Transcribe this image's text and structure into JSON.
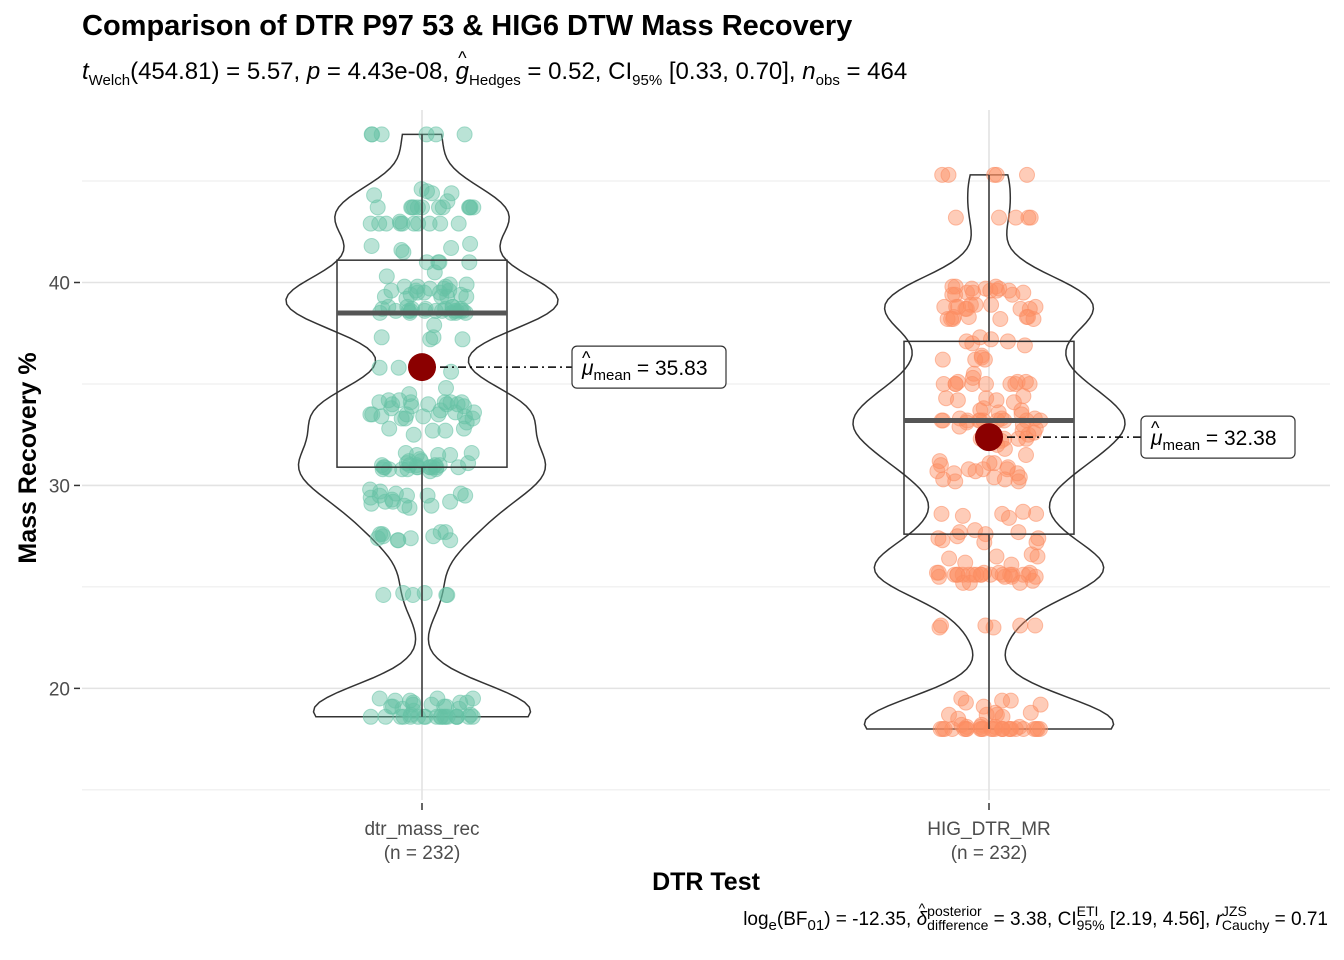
{
  "title": "Comparison of DTR P97 53 & HIG6 DTW Mass Recovery",
  "subtitle": {
    "t_label": "t",
    "t_sub": "Welch",
    "t_value": "(454.81) = 5.57, ",
    "p_label": "p",
    "p_value": " = 4.43e-08, ",
    "g_label": "g",
    "g_sub": "Hedges",
    "g_value": " = 0.52, CI",
    "ci_sub": "95%",
    "ci_value": " [0.33, 0.70], ",
    "n_label": "n",
    "n_sub": "obs",
    "n_value": " = 464"
  },
  "caption": {
    "log_label": "log",
    "log_sub": "e",
    "bf_label": "(BF",
    "bf_sub": "01",
    "bf_value": ") = -12.35, ",
    "delta_sup": "posterior",
    "delta_sub": "difference",
    "delta_value": " = 3.38, CI",
    "ci_sup": "ETI",
    "ci_sub": "95%",
    "ci_value": " [2.19, 4.56], ",
    "r_label": "r",
    "r_sup": "JZS",
    "r_sub": "Cauchy",
    "r_value": " = 0.71"
  },
  "chart_data": {
    "type": "violin-box-scatter",
    "xlabel": "DTR Test",
    "ylabel": "Mass Recovery %",
    "ylim": [
      14.5,
      48.5
    ],
    "yticks": [
      20,
      30,
      40
    ],
    "grid": true,
    "groups": [
      {
        "name": "dtr_mass_rec",
        "n_label": "(n = 232)",
        "color": "#66c2a5",
        "mean": 35.83,
        "mean_label": "35.83",
        "box": {
          "min": 18.6,
          "q1": 30.9,
          "median": 38.5,
          "q3": 41.1,
          "max": 47.3
        },
        "values": [
          47.3,
          47.3,
          47.3,
          47.3,
          47.3,
          47.3,
          44.6,
          44.5,
          44.4,
          44.4,
          44.3,
          44.0,
          43.7,
          43.7,
          43.7,
          43.7,
          43.7,
          43.7,
          43.7,
          43.7,
          43.7,
          43.7,
          43.7,
          43.7,
          43.0,
          42.9,
          42.9,
          42.9,
          42.9,
          42.9,
          42.9,
          42.9,
          42.9,
          42.9,
          42.9,
          41.9,
          41.8,
          41.7,
          41.6,
          41.5,
          41.0,
          41.0,
          41.0,
          41.0,
          40.5,
          40.3,
          39.9,
          39.9,
          39.8,
          39.8,
          39.8,
          39.7,
          39.7,
          39.6,
          39.6,
          39.6,
          39.5,
          39.5,
          39.5,
          39.4,
          39.4,
          39.3,
          39.3,
          39.3,
          39.3,
          39.2,
          38.8,
          38.8,
          38.8,
          38.8,
          38.7,
          38.7,
          38.7,
          38.7,
          38.7,
          38.6,
          38.6,
          38.6,
          38.6,
          38.6,
          38.6,
          38.6,
          38.6,
          38.6,
          38.6,
          38.5,
          38.5,
          38.5,
          38.5,
          38.5,
          37.9,
          37.3,
          37.3,
          37.2,
          37.2,
          35.8,
          35.8,
          35.6,
          34.8,
          34.5,
          34.2,
          34.2,
          34.1,
          34.1,
          34.1,
          34.1,
          34.1,
          34.0,
          34.0,
          34.0,
          34.0,
          33.9,
          33.9,
          33.8,
          33.7,
          33.6,
          33.6,
          33.5,
          33.5,
          33.5,
          33.5,
          33.4,
          33.4,
          33.4,
          33.3,
          33.3,
          33.3,
          33.1,
          32.8,
          32.8,
          32.7,
          32.7,
          32.5,
          31.6,
          31.6,
          31.5,
          31.5,
          31.5,
          31.3,
          31.2,
          31.2,
          31.1,
          31.1,
          31.0,
          31.0,
          31.0,
          31.0,
          31.0,
          30.9,
          30.9,
          30.9,
          30.9,
          30.9,
          30.9,
          30.9,
          30.9,
          30.9,
          30.8,
          30.8,
          30.8,
          30.8,
          30.8,
          30.7,
          29.8,
          29.7,
          29.6,
          29.6,
          29.5,
          29.5,
          29.5,
          29.5,
          29.4,
          29.3,
          29.2,
          29.2,
          29.2,
          29.1,
          29.0,
          29.0,
          28.9,
          27.7,
          27.7,
          27.6,
          27.6,
          27.5,
          27.5,
          27.4,
          27.4,
          27.3,
          27.3,
          27.3,
          24.7,
          24.7,
          24.6,
          24.6,
          24.6,
          24.6,
          19.5,
          19.5,
          19.5,
          19.4,
          19.4,
          19.3,
          19.3,
          19.3,
          19.2,
          19.2,
          19.1,
          19.1,
          19.1,
          19.1,
          19.0,
          19.0,
          18.9,
          18.7,
          18.7,
          18.6,
          18.6,
          18.6,
          18.6,
          18.6,
          18.6,
          18.6,
          18.6,
          18.6,
          18.6,
          18.6,
          18.6,
          18.6,
          18.6,
          18.6,
          18.6,
          18.6,
          18.6,
          18.6
        ]
      },
      {
        "name": "HIG_DTR_MR",
        "n_label": "(n = 232)",
        "color": "#fc8d62",
        "mean": 32.38,
        "mean_label": "32.38",
        "box": {
          "min": 18.0,
          "q1": 27.6,
          "median": 33.2,
          "q3": 37.1,
          "max": 45.3
        },
        "values": [
          45.3,
          45.3,
          45.3,
          45.3,
          45.3,
          43.2,
          43.2,
          43.2,
          43.2,
          43.2,
          39.8,
          39.8,
          39.8,
          39.7,
          39.7,
          39.7,
          39.6,
          39.6,
          39.6,
          39.5,
          39.5,
          39.5,
          39.4,
          39.4,
          39.4,
          38.9,
          38.9,
          38.9,
          38.8,
          38.8,
          38.8,
          38.8,
          38.7,
          38.7,
          38.7,
          38.7,
          38.3,
          38.3,
          38.3,
          38.3,
          38.2,
          38.2,
          38.2,
          38.2,
          38.2,
          37.3,
          37.2,
          37.1,
          37.1,
          37.0,
          36.9,
          36.4,
          36.3,
          36.2,
          36.2,
          36.2,
          35.5,
          35.3,
          35.1,
          35.1,
          35.1,
          35.0,
          35.0,
          35.0,
          35.0,
          35.0,
          35.0,
          35.0,
          35.0,
          34.4,
          34.3,
          34.3,
          34.2,
          34.2,
          34.1,
          33.8,
          33.7,
          33.7,
          33.6,
          33.5,
          33.3,
          33.3,
          33.3,
          33.2,
          33.2,
          33.2,
          33.2,
          33.2,
          33.2,
          33.2,
          33.2,
          33.2,
          33.2,
          33.1,
          33.0,
          32.9,
          32.8,
          32.8,
          32.7,
          32.6,
          32.5,
          32.5,
          32.3,
          32.3,
          32.3,
          32.3,
          32.3,
          32.3,
          32.2,
          32.1,
          32.0,
          31.8,
          31.5,
          31.2,
          31.1,
          31.1,
          31.0,
          30.9,
          30.8,
          30.8,
          30.8,
          30.7,
          30.7,
          30.6,
          30.6,
          30.4,
          30.4,
          30.3,
          30.3,
          30.2,
          30.2,
          28.7,
          28.6,
          28.6,
          28.6,
          28.5,
          28.4,
          27.8,
          27.7,
          27.7,
          27.6,
          27.5,
          27.4,
          27.4,
          27.3,
          27.2,
          27.2,
          26.6,
          26.5,
          26.5,
          26.4,
          26.2,
          26.1,
          25.7,
          25.7,
          25.7,
          25.7,
          25.7,
          25.6,
          25.6,
          25.6,
          25.6,
          25.6,
          25.6,
          25.6,
          25.6,
          25.6,
          25.6,
          25.6,
          25.6,
          25.6,
          25.6,
          25.6,
          25.5,
          25.5,
          25.5,
          25.5,
          25.3,
          25.2,
          25.2,
          25.2,
          23.1,
          23.1,
          23.1,
          23.1,
          23.0,
          23.0,
          19.5,
          19.4,
          19.4,
          19.3,
          19.2,
          19.1,
          18.8,
          18.8,
          18.7,
          18.7,
          18.7,
          18.6,
          18.5,
          18.2,
          18.2,
          18.1,
          18.1,
          18.1,
          18.1,
          18.0,
          18.0,
          18.0,
          18.0,
          18.0,
          18.0,
          18.0,
          18.0,
          18.0,
          18.0,
          18.0,
          18.0,
          18.0,
          18.0,
          18.0,
          18.0,
          18.0,
          18.0,
          18.0,
          18.0,
          18.0,
          18.0,
          18.0,
          18.0,
          18.0
        ]
      }
    ]
  }
}
